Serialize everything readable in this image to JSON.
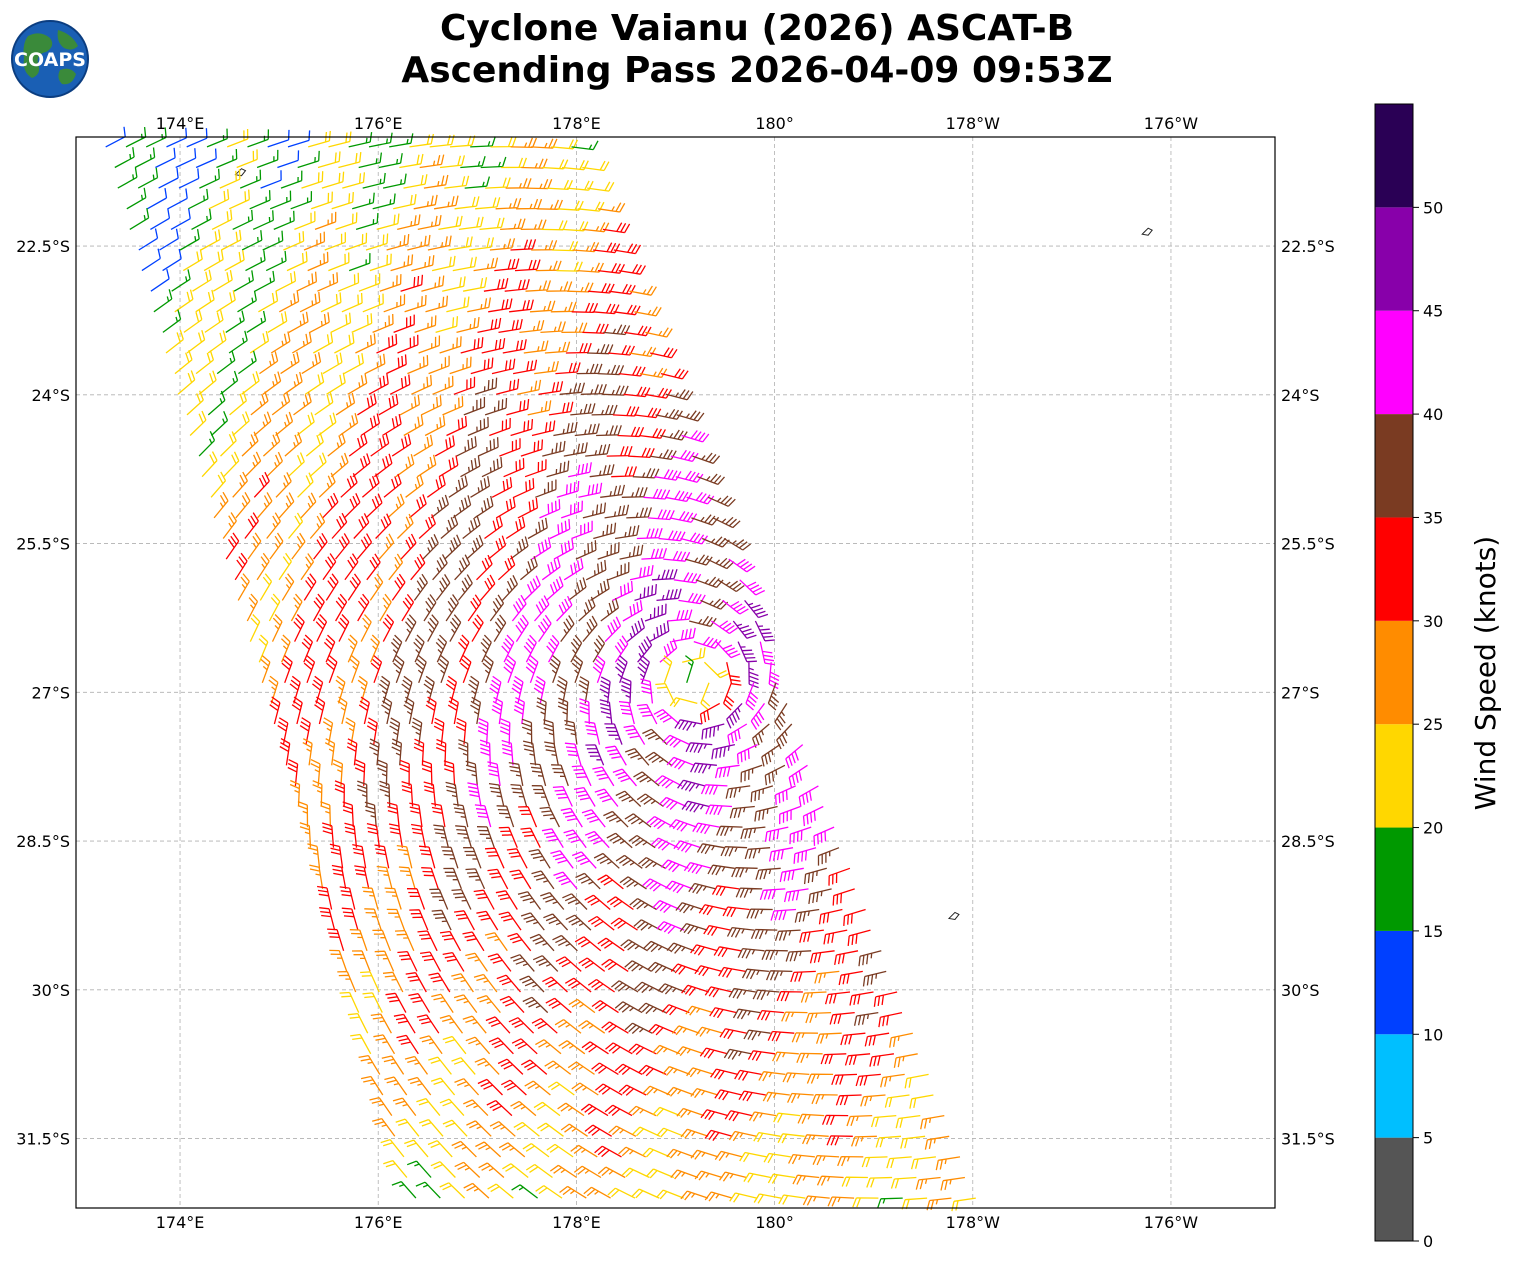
{
  "title": {
    "line1": "Cyclone Vaianu (2026) ASCAT-B",
    "line2": "Ascending Pass 2026-04-09 09:53Z"
  },
  "logo": {
    "text": "COAPS",
    "icon": "globe-icon"
  },
  "map": {
    "projection": "equirectangular",
    "lon_range_east": [
      172.95,
      185.05
    ],
    "lat_range": [
      -21.4,
      -32.2
    ],
    "grid": true,
    "lon_ticks": [
      {
        "value": 174,
        "label": "174°E"
      },
      {
        "value": 176,
        "label": "176°E"
      },
      {
        "value": 178,
        "label": "178°E"
      },
      {
        "value": 180,
        "label": "180°"
      },
      {
        "value": 182,
        "label": "178°W"
      },
      {
        "value": 184,
        "label": "176°W"
      }
    ],
    "lat_ticks": [
      {
        "value": -22.5,
        "label": "22.5°S"
      },
      {
        "value": -24,
        "label": "24°S"
      },
      {
        "value": -25.5,
        "label": "25.5°S"
      },
      {
        "value": -27,
        "label": "27°S"
      },
      {
        "value": -28.5,
        "label": "28.5°S"
      },
      {
        "value": -30,
        "label": "30°S"
      },
      {
        "value": -31.5,
        "label": "31.5°S"
      }
    ],
    "swath": {
      "top_left": [
        173.25,
        -21.5
      ],
      "top_right": [
        177.95,
        -21.5
      ],
      "bottom_left": [
        176.35,
        -32.1
      ],
      "bottom_right": [
        182.0,
        -32.1
      ]
    },
    "cyclone_center": [
      179.2,
      -26.9
    ],
    "islands": [
      {
        "lon": 181.8,
        "lat": -29.25
      },
      {
        "lon": 183.75,
        "lat": -22.35
      },
      {
        "lon": 174.6,
        "lat": -21.75
      }
    ]
  },
  "colorbar": {
    "title": "Wind Speed (knots)",
    "bins": [
      {
        "min": 0,
        "max": 5,
        "color": "#555555"
      },
      {
        "min": 5,
        "max": 10,
        "color": "#00bfff"
      },
      {
        "min": 10,
        "max": 15,
        "color": "#0040ff"
      },
      {
        "min": 15,
        "max": 20,
        "color": "#009900"
      },
      {
        "min": 20,
        "max": 25,
        "color": "#ffd700"
      },
      {
        "min": 25,
        "max": 30,
        "color": "#ff8c00"
      },
      {
        "min": 30,
        "max": 35,
        "color": "#ff0000"
      },
      {
        "min": 35,
        "max": 40,
        "color": "#7a3b22"
      },
      {
        "min": 40,
        "max": 45,
        "color": "#ff00ff"
      },
      {
        "min": 45,
        "max": 50,
        "color": "#8800aa"
      },
      {
        "min": 50,
        "max": 55,
        "color": "#2a0055"
      }
    ],
    "tick_labels": [
      "0",
      "5",
      "10",
      "15",
      "20",
      "25",
      "30",
      "35",
      "40",
      "45",
      "50"
    ]
  }
}
